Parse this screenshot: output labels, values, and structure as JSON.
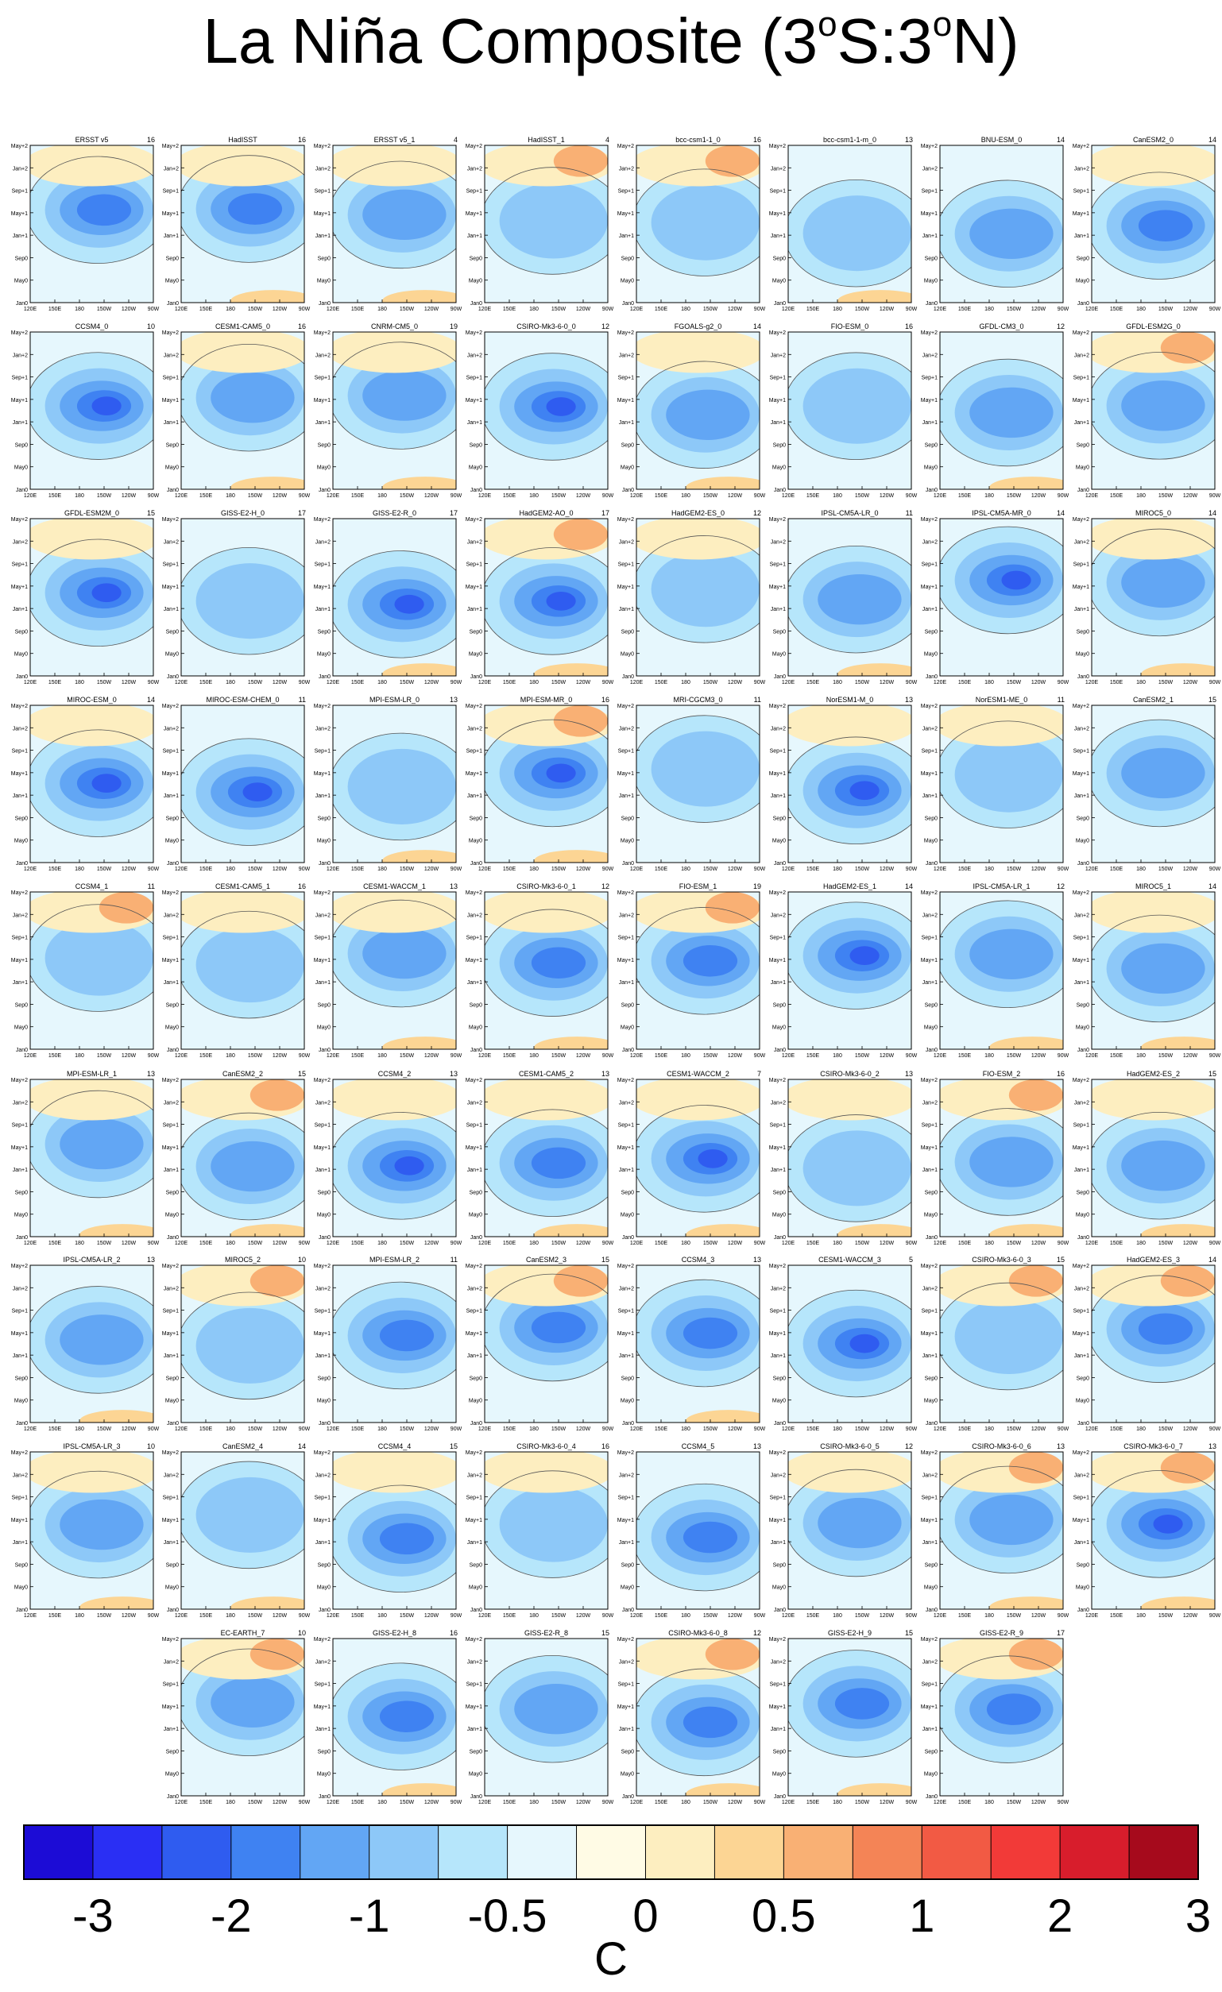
{
  "title": {
    "prefix": "La Niña Composite (3",
    "sup1": "o",
    "mid": "S:3",
    "sup2": "o",
    "suffix": "N)"
  },
  "units": "C",
  "chart_data": {
    "type": "heatmap",
    "title": "La Niña Composite (3°S:3°N)",
    "x_ticks": [
      "120E",
      "150E",
      "180",
      "150W",
      "120W",
      "90W"
    ],
    "y_ticks": [
      "May+2",
      "Jan+2",
      "Sep+1",
      "May+1",
      "Jan+1",
      "Sep0",
      "May0",
      "Jan0"
    ],
    "colorbar": {
      "label": "C",
      "tick_labels": [
        "-3",
        "-2",
        "-1",
        "-0.5",
        "0",
        "0.5",
        "1",
        "2",
        "3"
      ],
      "colors": [
        "#1c0cd6",
        "#2a2ff4",
        "#2f5cf0",
        "#3f82f2",
        "#62a6f4",
        "#8dc8f8",
        "#b6e6fb",
        "#e6f7fd",
        "#fffbe5",
        "#fdeec0",
        "#fcd594",
        "#f9b074",
        "#f48456",
        "#f25a44",
        "#f23a38",
        "#d81d2c",
        "#a60a1c"
      ]
    },
    "panels": [
      {
        "name": "ERSST v5",
        "count": "16",
        "row": 0,
        "col": 0
      },
      {
        "name": "HadISST",
        "count": "16",
        "row": 0,
        "col": 1
      },
      {
        "name": "ERSST v5_1",
        "count": "4",
        "row": 0,
        "col": 2
      },
      {
        "name": "HadISST_1",
        "count": "4",
        "row": 0,
        "col": 3
      },
      {
        "name": "bcc-csm1-1_0",
        "count": "16",
        "row": 0,
        "col": 4
      },
      {
        "name": "bcc-csm1-1-m_0",
        "count": "13",
        "row": 0,
        "col": 5
      },
      {
        "name": "BNU-ESM_0",
        "count": "14",
        "row": 0,
        "col": 6
      },
      {
        "name": "CanESM2_0",
        "count": "14",
        "row": 0,
        "col": 7
      },
      {
        "name": "CCSM4_0",
        "count": "10",
        "row": 1,
        "col": 0
      },
      {
        "name": "CESM1-CAM5_0",
        "count": "16",
        "row": 1,
        "col": 1
      },
      {
        "name": "CNRM-CM5_0",
        "count": "19",
        "row": 1,
        "col": 2
      },
      {
        "name": "CSIRO-Mk3-6-0_0",
        "count": "12",
        "row": 1,
        "col": 3
      },
      {
        "name": "FGOALS-g2_0",
        "count": "14",
        "row": 1,
        "col": 4
      },
      {
        "name": "FIO-ESM_0",
        "count": "16",
        "row": 1,
        "col": 5
      },
      {
        "name": "GFDL-CM3_0",
        "count": "12",
        "row": 1,
        "col": 6
      },
      {
        "name": "GFDL-ESM2G_0",
        "count": "",
        "row": 1,
        "col": 7
      },
      {
        "name": "GFDL-ESM2M_0",
        "count": "15",
        "row": 2,
        "col": 0
      },
      {
        "name": "GISS-E2-H_0",
        "count": "17",
        "row": 2,
        "col": 1
      },
      {
        "name": "GISS-E2-R_0",
        "count": "17",
        "row": 2,
        "col": 2
      },
      {
        "name": "HadGEM2-AO_0",
        "count": "17",
        "row": 2,
        "col": 3
      },
      {
        "name": "HadGEM2-ES_0",
        "count": "12",
        "row": 2,
        "col": 4
      },
      {
        "name": "IPSL-CM5A-LR_0",
        "count": "11",
        "row": 2,
        "col": 5
      },
      {
        "name": "IPSL-CM5A-MR_0",
        "count": "14",
        "row": 2,
        "col": 6
      },
      {
        "name": "MIROC5_0",
        "count": "14",
        "row": 2,
        "col": 7
      },
      {
        "name": "MIROC-ESM_0",
        "count": "14",
        "row": 3,
        "col": 0
      },
      {
        "name": "MIROC-ESM-CHEM_0",
        "count": "11",
        "row": 3,
        "col": 1
      },
      {
        "name": "MPI-ESM-LR_0",
        "count": "13",
        "row": 3,
        "col": 2
      },
      {
        "name": "MPI-ESM-MR_0",
        "count": "16",
        "row": 3,
        "col": 3
      },
      {
        "name": "MRI-CGCM3_0",
        "count": "11",
        "row": 3,
        "col": 4
      },
      {
        "name": "NorESM1-M_0",
        "count": "13",
        "row": 3,
        "col": 5
      },
      {
        "name": "NorESM1-ME_0",
        "count": "11",
        "row": 3,
        "col": 6
      },
      {
        "name": "CanESM2_1",
        "count": "15",
        "row": 3,
        "col": 7
      },
      {
        "name": "CCSM4_1",
        "count": "11",
        "row": 4,
        "col": 0
      },
      {
        "name": "CESM1-CAM5_1",
        "count": "16",
        "row": 4,
        "col": 1
      },
      {
        "name": "CESM1-WACCM_1",
        "count": "13",
        "row": 4,
        "col": 2
      },
      {
        "name": "CSIRO-Mk3-6-0_1",
        "count": "12",
        "row": 4,
        "col": 3
      },
      {
        "name": "FIO-ESM_1",
        "count": "19",
        "row": 4,
        "col": 4
      },
      {
        "name": "HadGEM2-ES_1",
        "count": "14",
        "row": 4,
        "col": 5
      },
      {
        "name": "IPSL-CM5A-LR_1",
        "count": "12",
        "row": 4,
        "col": 6
      },
      {
        "name": "MIROC5_1",
        "count": "14",
        "row": 4,
        "col": 7
      },
      {
        "name": "MPI-ESM-LR_1",
        "count": "13",
        "row": 5,
        "col": 0
      },
      {
        "name": "CanESM2_2",
        "count": "15",
        "row": 5,
        "col": 1
      },
      {
        "name": "CCSM4_2",
        "count": "13",
        "row": 5,
        "col": 2
      },
      {
        "name": "CESM1-CAM5_2",
        "count": "13",
        "row": 5,
        "col": 3
      },
      {
        "name": "CESM1-WACCM_2",
        "count": "7",
        "row": 5,
        "col": 4
      },
      {
        "name": "CSIRO-Mk3-6-0_2",
        "count": "13",
        "row": 5,
        "col": 5
      },
      {
        "name": "FIO-ESM_2",
        "count": "16",
        "row": 5,
        "col": 6
      },
      {
        "name": "HadGEM2-ES_2",
        "count": "15",
        "row": 5,
        "col": 7
      },
      {
        "name": "IPSL-CM5A-LR_2",
        "count": "13",
        "row": 6,
        "col": 0
      },
      {
        "name": "MIROC5_2",
        "count": "10",
        "row": 6,
        "col": 1
      },
      {
        "name": "MPI-ESM-LR_2",
        "count": "11",
        "row": 6,
        "col": 2
      },
      {
        "name": "CanESM2_3",
        "count": "15",
        "row": 6,
        "col": 3
      },
      {
        "name": "CCSM4_3",
        "count": "13",
        "row": 6,
        "col": 4
      },
      {
        "name": "CESM1-WACCM_3",
        "count": "5",
        "row": 6,
        "col": 5
      },
      {
        "name": "CSIRO-Mk3-6-0_3",
        "count": "15",
        "row": 6,
        "col": 6
      },
      {
        "name": "HadGEM2-ES_3",
        "count": "14",
        "row": 6,
        "col": 7
      },
      {
        "name": "IPSL-CM5A-LR_3",
        "count": "10",
        "row": 7,
        "col": 0
      },
      {
        "name": "CanESM2_4",
        "count": "14",
        "row": 7,
        "col": 1
      },
      {
        "name": "CCSM4_4",
        "count": "15",
        "row": 7,
        "col": 2
      },
      {
        "name": "CSIRO-Mk3-6-0_4",
        "count": "16",
        "row": 7,
        "col": 3
      },
      {
        "name": "CCSM4_5",
        "count": "13",
        "row": 7,
        "col": 4
      },
      {
        "name": "CSIRO-Mk3-6-0_5",
        "count": "12",
        "row": 7,
        "col": 5
      },
      {
        "name": "CSIRO-Mk3-6-0_6",
        "count": "13",
        "row": 7,
        "col": 6
      },
      {
        "name": "CSIRO-Mk3-6-0_7",
        "count": "13",
        "row": 7,
        "col": 7
      },
      {
        "name": "EC-EARTH_7",
        "count": "10",
        "row": 8,
        "col": 1
      },
      {
        "name": "GISS-E2-H_8",
        "count": "16",
        "row": 8,
        "col": 2
      },
      {
        "name": "GISS-E2-R_8",
        "count": "15",
        "row": 8,
        "col": 3
      },
      {
        "name": "CSIRO-Mk3-6-0_8",
        "count": "12",
        "row": 8,
        "col": 4
      },
      {
        "name": "GISS-E2-H_9",
        "count": "15",
        "row": 8,
        "col": 5
      },
      {
        "name": "GISS-E2-R_9",
        "count": "17",
        "row": 8,
        "col": 6
      }
    ]
  }
}
